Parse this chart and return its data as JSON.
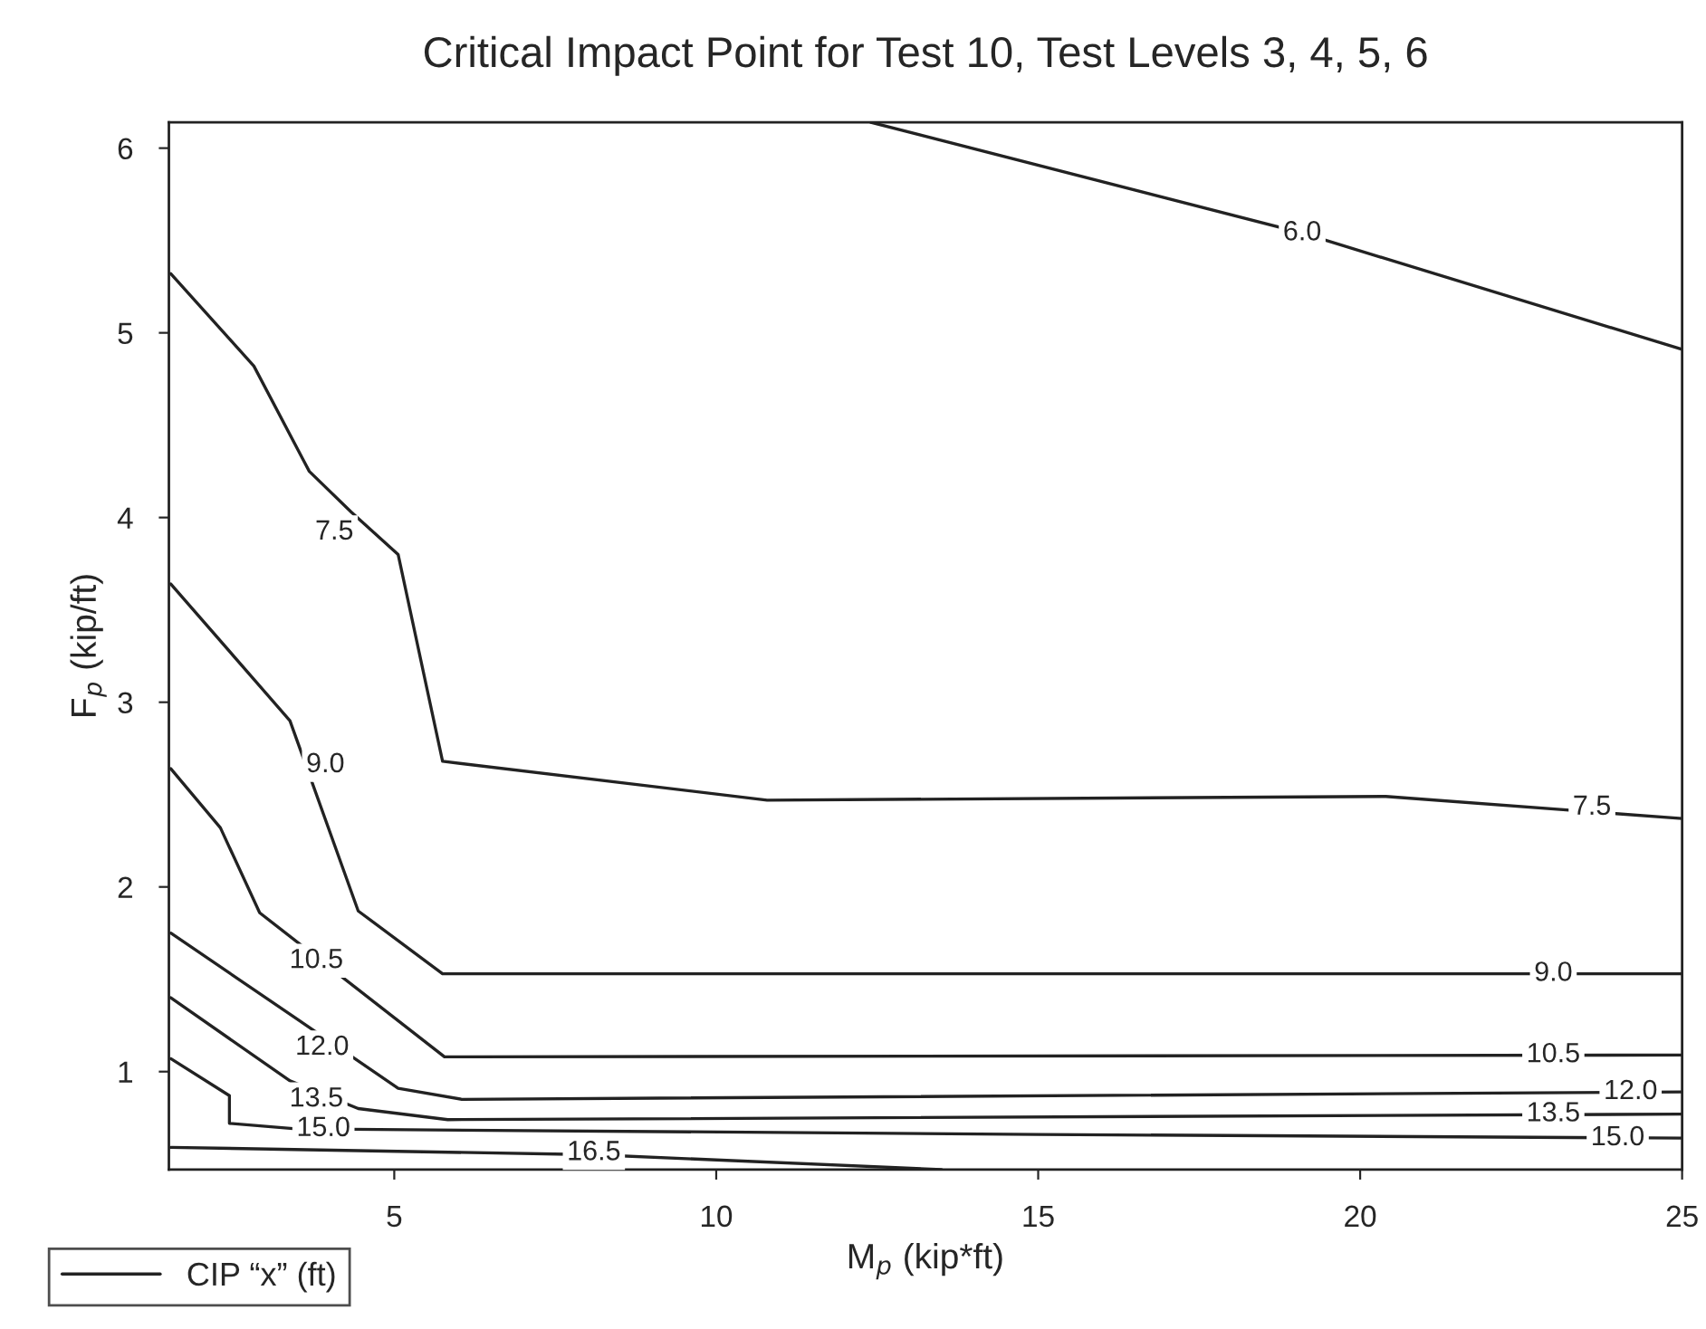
{
  "chart_data": {
    "type": "line",
    "title": "Critical Impact Point for Test 10, Test Levels 3, 4, 5, 6",
    "xlabel": "M$_{p}$ (kip*ft)",
    "ylabel": "F$_{p}$ (kip/ft)",
    "legend": "bottom left",
    "grid": false,
    "marker": "none",
    "line_style": "solid",
    "xlim": [
      1.5,
      25
    ],
    "ylim": [
      0.47,
      6.14
    ],
    "xticks": [
      5,
      10,
      15,
      20,
      25
    ],
    "yticks": [
      1,
      2,
      3,
      4,
      5,
      6
    ],
    "series": [
      {
        "name": "CIP “x” (ft)",
        "color": "#222222",
        "x": [
          12.4,
          19.1,
          25
        ],
        "values": [
          6.14,
          5.54,
          4.91
        ]
      },
      {
        "color": "#222222",
        "x": [
          1.53,
          2.82,
          3.68,
          4.33,
          5.06,
          5.75,
          10.79,
          20.4,
          25
        ],
        "values": [
          5.32,
          4.82,
          4.25,
          4.03,
          3.8,
          2.68,
          2.47,
          2.49,
          2.37
        ]
      },
      {
        "color": "#222222",
        "x": [
          1.53,
          3.38,
          4.44,
          5.75,
          25
        ],
        "values": [
          3.64,
          2.9,
          1.87,
          1.53,
          1.53
        ]
      },
      {
        "color": "#222222",
        "x": [
          1.53,
          2.3,
          2.91,
          5.78,
          25
        ],
        "values": [
          2.64,
          2.32,
          1.86,
          1.08,
          1.09
        ]
      },
      {
        "color": "#222222",
        "x": [
          1.53,
          3.47,
          5.06,
          6.05,
          25
        ],
        "values": [
          1.75,
          1.29,
          0.91,
          0.85,
          0.89
        ]
      },
      {
        "color": "#222222",
        "x": [
          1.53,
          3.38,
          4.44,
          5.83,
          25
        ],
        "values": [
          1.4,
          0.95,
          0.8,
          0.74,
          0.77
        ]
      },
      {
        "color": "#222222",
        "x": [
          1.53,
          2.44,
          2.44,
          3.47,
          15,
          25
        ],
        "values": [
          1.07,
          0.87,
          0.72,
          0.69,
          0.66,
          0.64
        ]
      },
      {
        "color": "#222222",
        "x": [
          1.53,
          8.1,
          13.5
        ],
        "values": [
          0.59,
          0.55,
          0.47
        ]
      }
    ],
    "annotations": [
      {
        "text": "6.0",
        "x": 19.1,
        "y": 5.54
      },
      {
        "text": "7.5",
        "x": 4.07,
        "y": 3.92
      },
      {
        "text": "7.5",
        "x": 23.6,
        "y": 2.43
      },
      {
        "text": "9.0",
        "x": 3.93,
        "y": 2.66
      },
      {
        "text": "9.0",
        "x": 23.0,
        "y": 1.53
      },
      {
        "text": "10.5",
        "x": 3.79,
        "y": 1.6
      },
      {
        "text": "10.5",
        "x": 23.0,
        "y": 1.09
      },
      {
        "text": "12.0",
        "x": 3.88,
        "y": 1.13
      },
      {
        "text": "12.0",
        "x": 24.2,
        "y": 0.89
      },
      {
        "text": "13.5",
        "x": 3.79,
        "y": 0.85
      },
      {
        "text": "13.5",
        "x": 23.0,
        "y": 0.77
      },
      {
        "text": "15.0",
        "x": 3.9,
        "y": 0.69
      },
      {
        "text": "15.0",
        "x": 24.0,
        "y": 0.64
      },
      {
        "text": "16.5",
        "x": 8.1,
        "y": 0.56
      }
    ]
  }
}
